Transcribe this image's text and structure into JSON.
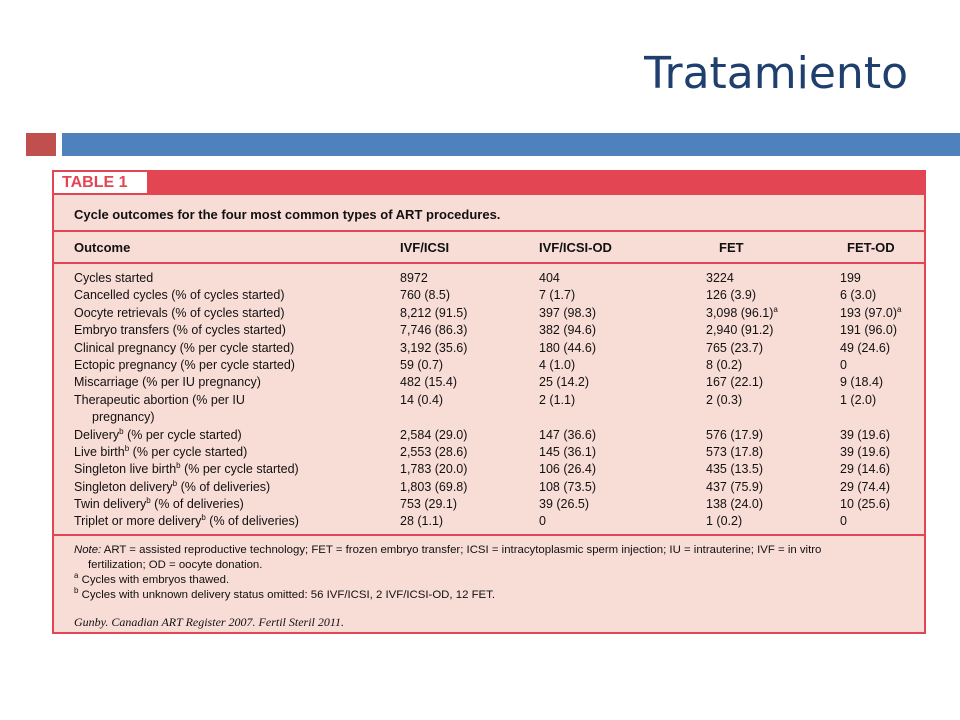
{
  "slide": {
    "title": "Tratamiento"
  },
  "table": {
    "label": "TABLE 1",
    "caption": "Cycle outcomes for the four most common types of ART procedures.",
    "columns": [
      "Outcome",
      "IVF/ICSI",
      "IVF/ICSI-OD",
      "FET",
      "FET-OD"
    ],
    "rows": [
      {
        "outcome": "Cycles started",
        "sup": "",
        "outcome_rest": "",
        "values": [
          "8972",
          "404",
          "3224",
          "199"
        ]
      },
      {
        "outcome": "Cancelled cycles (% of cycles started)",
        "sup": "",
        "outcome_rest": "",
        "values": [
          "760 (8.5)",
          "7 (1.7)",
          "126 (3.9)",
          "6 (3.0)"
        ]
      },
      {
        "outcome": "Oocyte retrievals (% of cycles started)",
        "sup": "",
        "outcome_rest": "",
        "values": [
          "8,212 (91.5)",
          "397 (98.3)",
          "3,098 (96.1)",
          "193 (97.0)"
        ],
        "value_sups": [
          "",
          "",
          "a",
          "a"
        ]
      },
      {
        "outcome": "Embryo transfers (% of cycles started)",
        "sup": "",
        "outcome_rest": "",
        "values": [
          "7,746 (86.3)",
          "382 (94.6)",
          "2,940 (91.2)",
          "191 (96.0)"
        ]
      },
      {
        "outcome": "Clinical pregnancy (% per cycle started)",
        "sup": "",
        "outcome_rest": "",
        "values": [
          "3,192 (35.6)",
          "180 (44.6)",
          "765 (23.7)",
          "49 (24.6)"
        ]
      },
      {
        "outcome": "Ectopic pregnancy (% per cycle started)",
        "sup": "",
        "outcome_rest": "",
        "values": [
          "59 (0.7)",
          "4 (1.0)",
          "8 (0.2)",
          "0"
        ]
      },
      {
        "outcome": "Miscarriage (% per IU pregnancy)",
        "sup": "",
        "outcome_rest": "",
        "values": [
          "482 (15.4)",
          "25 (14.2)",
          "167 (22.1)",
          "9 (18.4)"
        ]
      },
      {
        "outcome": "Therapeutic abortion (% per IU",
        "sup": "",
        "outcome_rest": "",
        "outcome_line2": "pregnancy)",
        "values": [
          "14 (0.4)",
          "2 (1.1)",
          "2 (0.3)",
          "1 (2.0)"
        ]
      },
      {
        "outcome": "Delivery",
        "sup": "b",
        "outcome_rest": " (% per cycle started)",
        "values": [
          "2,584 (29.0)",
          "147 (36.6)",
          "576 (17.9)",
          "39 (19.6)"
        ]
      },
      {
        "outcome": "Live birth",
        "sup": "b",
        "outcome_rest": " (% per cycle started)",
        "values": [
          "2,553 (28.6)",
          "145 (36.1)",
          "573 (17.8)",
          "39 (19.6)"
        ]
      },
      {
        "outcome": "Singleton live birth",
        "sup": "b",
        "outcome_rest": " (% per cycle started)",
        "values": [
          "1,783 (20.0)",
          "106 (26.4)",
          "435 (13.5)",
          "29 (14.6)"
        ]
      },
      {
        "outcome": "Singleton delivery",
        "sup": "b",
        "outcome_rest": " (% of deliveries)",
        "values": [
          "1,803 (69.8)",
          "108 (73.5)",
          "437 (75.9)",
          "29 (74.4)"
        ]
      },
      {
        "outcome": "Twin delivery",
        "sup": "b",
        "outcome_rest": " (% of deliveries)",
        "values": [
          "753 (29.1)",
          "39 (26.5)",
          "138 (24.0)",
          "10 (25.6)"
        ]
      },
      {
        "outcome": "Triplet or more delivery",
        "sup": "b",
        "outcome_rest": " (% of deliveries)",
        "values": [
          "28 (1.1)",
          "0",
          "1 (0.2)",
          "0"
        ]
      }
    ],
    "notes": {
      "note_label": "Note:",
      "note_text": " ART = assisted reproductive technology; FET = frozen embryo transfer; ICSI = intracytoplasmic sperm injection; IU = intrauterine; IVF = in vitro",
      "note_text_line2": "fertilization; OD = oocyte donation.",
      "footnote_a_mark": "a",
      "footnote_a": " Cycles with embryos thawed.",
      "footnote_b_mark": "b",
      "footnote_b": " Cycles with unknown delivery status omitted: 56 IVF/ICSI, 2 IVF/ICSI-OD, 12 FET."
    },
    "source": "Gunby. Canadian ART Register 2007. Fertil Steril 2011."
  }
}
